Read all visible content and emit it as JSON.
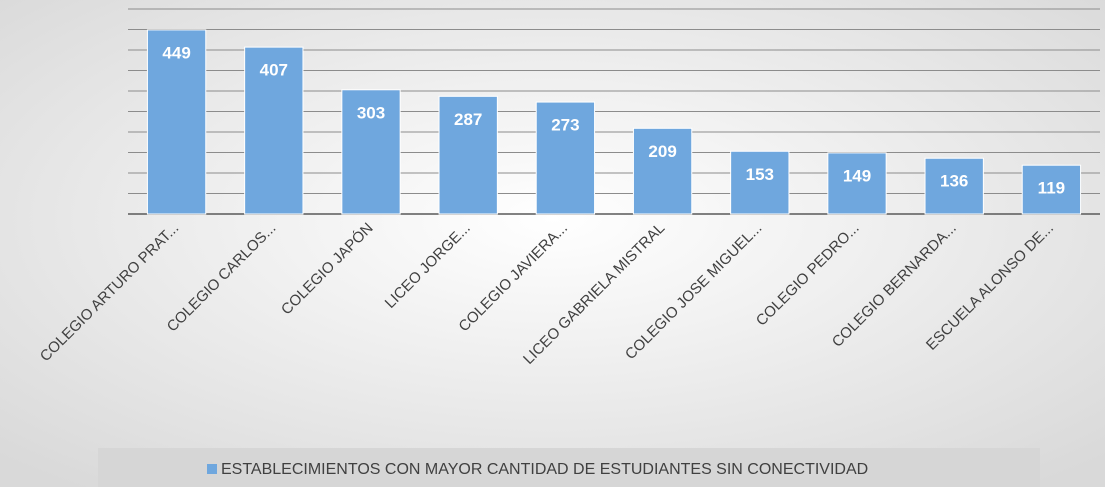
{
  "chart_data": {
    "type": "bar",
    "categories": [
      "COLEGIO ARTURO PRAT...",
      "COLEGIO CARLOS...",
      "COLEGIO JAPÓN",
      "LICEO JORGE...",
      "COLEGIO JAVIERA...",
      "LICEO GABRIELA MISTRAL",
      "COLEGIO JOSE MIGUEL...",
      "COLEGIO PEDRO...",
      "COLEGIO BERNARDA...",
      "ESCUELA ALONSO DE..."
    ],
    "series": [
      {
        "name": "ESTABLECIMIENTOS CON MAYOR CANTIDAD DE ESTUDIANTES SIN CONECTIVIDAD",
        "color": "#6fa7de",
        "values": [
          449,
          407,
          303,
          287,
          273,
          209,
          153,
          149,
          136,
          119
        ]
      }
    ],
    "ylim": [
      0,
      500
    ],
    "yticks": [
      0,
      50,
      100,
      150,
      200,
      250,
      300,
      350,
      400,
      450,
      500
    ],
    "grid": true,
    "legend": "bottom"
  }
}
